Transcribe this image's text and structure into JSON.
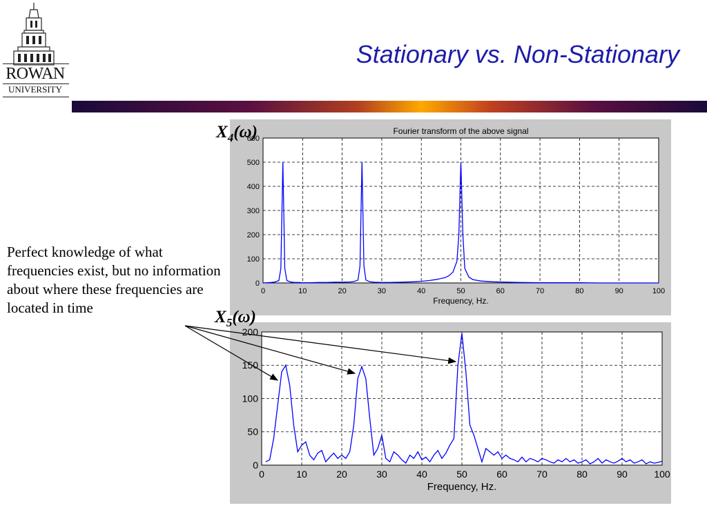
{
  "slide": {
    "title": "Stationary vs. Non-Stationary",
    "logo_line1": "ROWAN",
    "logo_line2": "UNIVERSITY",
    "description": "Perfect knowledge of what frequencies exist, but no information about where these frequencies are located in time"
  },
  "labels": {
    "x4": {
      "base": "X",
      "sub": "4",
      "suffix": "(ω)"
    },
    "x5": {
      "base": "X",
      "sub": "5",
      "suffix": "(ω)"
    }
  },
  "colors": {
    "title": "#1c1ca8",
    "line": "#0000ff",
    "panel": "#c8c8c8"
  },
  "chart_data": [
    {
      "type": "line",
      "title": "Fourier transform of the above signal",
      "xlabel": "Frequency, Hz.",
      "ylabel": "",
      "xlim": [
        0,
        100
      ],
      "ylim": [
        0,
        600
      ],
      "xticks": [
        0,
        10,
        20,
        30,
        40,
        50,
        60,
        70,
        80,
        90,
        100
      ],
      "yticks": [
        0,
        100,
        200,
        300,
        400,
        500,
        600
      ],
      "grid": true,
      "series": [
        {
          "x": [
            0,
            1,
            2,
            3,
            4,
            4.5,
            5,
            5.5,
            6,
            7,
            8,
            9,
            10,
            11,
            12,
            14,
            16,
            18,
            20,
            22,
            23,
            24,
            24.5,
            25,
            25.5,
            26,
            27,
            28,
            30,
            32,
            35,
            38,
            40,
            42,
            44,
            46,
            47,
            48,
            49,
            49.5,
            50,
            50.5,
            51,
            52,
            53,
            55,
            58,
            60,
            62,
            65,
            70,
            75,
            80,
            85,
            90,
            95,
            100
          ],
          "y": [
            0,
            1,
            2,
            4,
            10,
            60,
            500,
            60,
            10,
            4,
            2,
            2,
            1,
            1,
            1,
            2,
            2,
            3,
            3,
            4,
            6,
            12,
            70,
            500,
            70,
            12,
            5,
            3,
            2,
            2,
            3,
            5,
            7,
            10,
            15,
            22,
            30,
            45,
            90,
            200,
            500,
            200,
            60,
            25,
            14,
            8,
            5,
            4,
            3,
            2,
            1,
            1,
            1,
            0,
            0,
            0,
            0
          ]
        }
      ]
    },
    {
      "type": "line",
      "title": "",
      "xlabel": "Frequency, Hz.",
      "ylabel": "",
      "xlim": [
        0,
        100
      ],
      "ylim": [
        0,
        200
      ],
      "xticks": [
        0,
        10,
        20,
        30,
        40,
        50,
        60,
        70,
        80,
        90,
        100
      ],
      "yticks": [
        0,
        50,
        100,
        150,
        200
      ],
      "grid": true,
      "series": [
        {
          "x": [
            1,
            2,
            3,
            4,
            5,
            6,
            7,
            8,
            9,
            10,
            11,
            12,
            13,
            14,
            15,
            16,
            17,
            18,
            19,
            20,
            21,
            22,
            23,
            24,
            25,
            26,
            27,
            28,
            29,
            30,
            31,
            32,
            33,
            34,
            35,
            36,
            37,
            38,
            39,
            40,
            41,
            42,
            43,
            44,
            45,
            46,
            47,
            48,
            49,
            50,
            51,
            52,
            53,
            54,
            55,
            56,
            57,
            58,
            59,
            60,
            61,
            62,
            63,
            64,
            65,
            66,
            67,
            68,
            69,
            70,
            71,
            72,
            73,
            74,
            75,
            76,
            77,
            78,
            79,
            80,
            81,
            82,
            83,
            84,
            85,
            86,
            87,
            88,
            89,
            90,
            91,
            92,
            93,
            94,
            95,
            96,
            97,
            98,
            99,
            100
          ],
          "y": [
            5,
            8,
            40,
            90,
            140,
            150,
            120,
            60,
            20,
            30,
            35,
            15,
            8,
            18,
            22,
            5,
            12,
            18,
            10,
            15,
            10,
            20,
            60,
            130,
            148,
            130,
            70,
            15,
            25,
            45,
            10,
            5,
            20,
            15,
            8,
            3,
            15,
            10,
            20,
            8,
            12,
            5,
            15,
            22,
            10,
            18,
            30,
            40,
            150,
            198,
            140,
            60,
            45,
            25,
            5,
            25,
            20,
            15,
            20,
            10,
            15,
            10,
            8,
            5,
            12,
            5,
            10,
            8,
            5,
            10,
            8,
            5,
            3,
            8,
            5,
            10,
            5,
            8,
            3,
            5,
            8,
            2,
            5,
            10,
            3,
            8,
            5,
            3,
            6,
            10,
            5,
            8,
            3,
            5,
            8,
            2,
            5,
            3,
            4,
            6
          ]
        }
      ]
    }
  ]
}
